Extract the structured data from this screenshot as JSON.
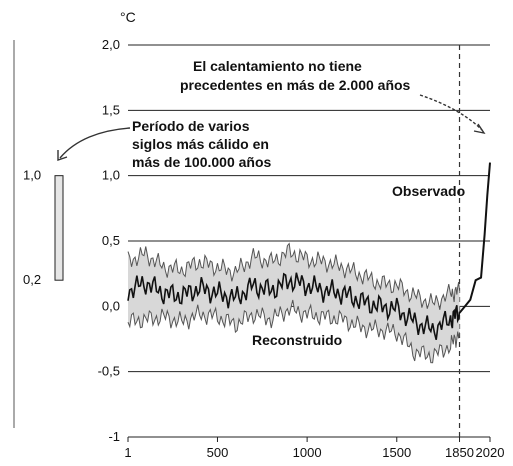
{
  "chart_data": {
    "type": "line",
    "unit_label": "°C",
    "ylim": [
      -1,
      2
    ],
    "xlim": [
      1,
      2020
    ],
    "y_ticks": [
      {
        "value": 2.0,
        "label": "2,0"
      },
      {
        "value": 1.5,
        "label": "1,5"
      },
      {
        "value": 1.0,
        "label": "1,0"
      },
      {
        "value": 0.5,
        "label": "0,5"
      },
      {
        "value": 0.0,
        "label": "0,0"
      },
      {
        "value": -0.5,
        "label": "-0,5"
      },
      {
        "value": -1.0,
        "label": "-1"
      }
    ],
    "x_ticks": [
      {
        "value": 1,
        "label": "1"
      },
      {
        "value": 500,
        "label": "500"
      },
      {
        "value": 1000,
        "label": "1000"
      },
      {
        "value": 1500,
        "label": "1500"
      },
      {
        "value": 1850,
        "label": "1850"
      },
      {
        "value": 2020,
        "label": "2020"
      }
    ],
    "grid": true,
    "vline_x": 1850,
    "annotations": {
      "unprecedented_line1": "El calentamiento no tiene",
      "unprecedented_line2": "precedentes en más de 2.000 años",
      "warmest_line1": "Período de varios",
      "warmest_line2": "siglos más cálido en",
      "warmest_line3": "más de 100.000 años",
      "observed": "Observado",
      "reconstructed": "Reconstruido"
    },
    "side_bar": {
      "top": {
        "value": 1.0,
        "label": "1,0"
      },
      "bottom": {
        "value": 0.2,
        "label": "0,2"
      }
    },
    "series": [
      {
        "x": [
          1,
          100,
          200,
          300,
          400,
          500,
          600,
          700,
          800,
          900,
          1000,
          1100,
          1200,
          1300,
          1400,
          1500,
          1600,
          1700,
          1800,
          1850
        ],
        "lower": [
          -0.12,
          -0.1,
          -0.08,
          -0.12,
          -0.06,
          -0.08,
          -0.14,
          -0.06,
          -0.1,
          -0.02,
          -0.06,
          -0.08,
          -0.1,
          -0.16,
          -0.18,
          -0.2,
          -0.35,
          -0.38,
          -0.3,
          -0.2
        ],
        "mid": [
          0.12,
          0.18,
          0.1,
          0.08,
          0.14,
          0.1,
          0.06,
          0.16,
          0.12,
          0.2,
          0.16,
          0.12,
          0.1,
          0.04,
          0.0,
          -0.02,
          -0.12,
          -0.18,
          -0.1,
          -0.04
        ],
        "upper": [
          0.35,
          0.4,
          0.3,
          0.28,
          0.34,
          0.3,
          0.26,
          0.38,
          0.34,
          0.42,
          0.36,
          0.34,
          0.3,
          0.24,
          0.18,
          0.16,
          0.08,
          0.02,
          0.1,
          0.12
        ]
      },
      {
        "x": [
          1850,
          1880,
          1910,
          1940,
          1970,
          1990,
          2005,
          2020
        ],
        "values": [
          -0.05,
          0.0,
          0.05,
          0.2,
          0.22,
          0.55,
          0.85,
          1.1
        ]
      }
    ]
  }
}
